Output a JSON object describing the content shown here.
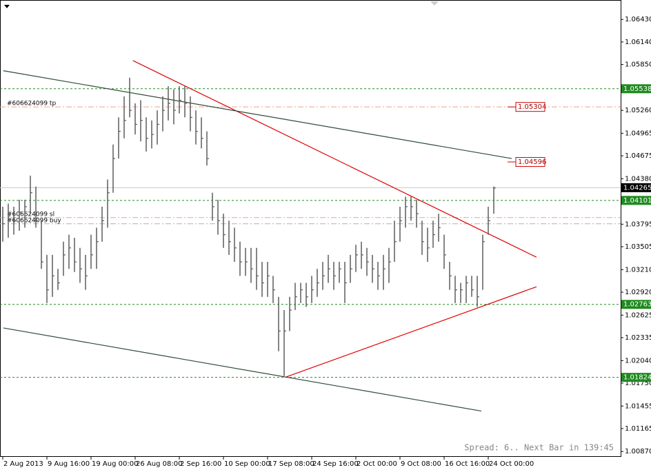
{
  "chart_data": {
    "type": "ohlc",
    "color": "#5a5a5a",
    "ylim": [
      1.0081,
      1.0668
    ],
    "yticks": [
      {
        "value": 1.0643,
        "label": "1.06430"
      },
      {
        "value": 1.0614,
        "label": "1.06140"
      },
      {
        "value": 1.0585,
        "label": "1.05850"
      },
      {
        "value": 1.0526,
        "label": "1.05260"
      },
      1.04965,
      1.04675,
      {
        "value": 1.0438,
        "label": "1.04380"
      },
      1.03795,
      1.03505,
      {
        "value": 1.0321,
        "label": "1.03210"
      },
      {
        "value": 1.0292,
        "label": "1.02920"
      },
      1.02625,
      1.02335,
      {
        "value": 1.0204,
        "label": "1.02040"
      },
      {
        "value": 1.0175,
        "label": "1.01750"
      },
      1.01455,
      1.01165,
      {
        "value": 1.0087,
        "label": "1.00870"
      }
    ],
    "xlim": [
      -0.5,
      112
    ],
    "xticks": [
      {
        "value": 0,
        "label": "2 Aug 2013"
      },
      {
        "value": 8,
        "label": "9 Aug 16:00"
      },
      {
        "value": 16,
        "label": "19 Aug 00:00"
      },
      {
        "value": 24,
        "label": "26 Aug 08:00"
      },
      {
        "value": 32,
        "label": "2 Sep 16:00"
      },
      {
        "value": 40,
        "label": "10 Sep 00:00"
      },
      {
        "value": 48,
        "label": "17 Sep 08:00"
      },
      {
        "value": 56,
        "label": "24 Sep 16:00"
      },
      {
        "value": 64,
        "label": "2 Oct 00:00"
      },
      {
        "value": 72,
        "label": "9 Oct 08:00"
      },
      {
        "value": 80,
        "label": "16 Oct 16:00"
      },
      {
        "value": 88,
        "label": "24 Oct 00:00"
      }
    ],
    "high": [
      1.0402,
      1.0406,
      1.0402,
      1.0411,
      1.0411,
      1.0442,
      1.0428,
      1.0384,
      1.034,
      1.034,
      1.0322,
      1.0357,
      1.0366,
      1.0362,
      1.0349,
      1.034,
      1.0366,
      1.0375,
      1.0402,
      1.0437,
      1.0482,
      1.0517,
      1.0544,
      1.0568,
      1.0535,
      1.0539,
      1.0517,
      1.0513,
      1.0526,
      1.0544,
      1.0557,
      1.0553,
      1.0557,
      1.0557,
      1.0544,
      1.0526,
      1.0517,
      1.0499,
      1.042,
      1.0411,
      1.0393,
      1.0384,
      1.0375,
      1.0357,
      1.0349,
      1.0349,
      1.0349,
      1.0331,
      1.0331,
      1.0313,
      1.0286,
      1.0269,
      1.0286,
      1.0304,
      1.0304,
      1.0304,
      1.0313,
      1.0322,
      1.0331,
      1.034,
      1.0331,
      1.0331,
      1.0331,
      1.034,
      1.0353,
      1.0357,
      1.0349,
      1.034,
      1.0331,
      1.034,
      1.0349,
      1.0384,
      1.0402,
      1.0415,
      1.0415,
      1.0411,
      1.0384,
      1.0375,
      1.0384,
      1.0393,
      1.0366,
      1.0331,
      1.0313,
      1.0304,
      1.0313,
      1.0313,
      1.0313,
      1.0366,
      1.0402,
      1.0428
    ],
    "low": [
      1.0357,
      1.0362,
      1.0366,
      1.0371,
      1.0375,
      1.0393,
      1.0375,
      1.0322,
      1.0278,
      1.0286,
      1.0295,
      1.0313,
      1.0322,
      1.0318,
      1.0304,
      1.0295,
      1.0322,
      1.0322,
      1.0357,
      1.0375,
      1.042,
      1.0464,
      1.049,
      1.0517,
      1.0495,
      1.0486,
      1.0473,
      1.0477,
      1.0482,
      1.0499,
      1.0513,
      1.0508,
      1.0522,
      1.0517,
      1.0499,
      1.0482,
      1.0477,
      1.0455,
      1.0384,
      1.0366,
      1.0349,
      1.034,
      1.0331,
      1.0313,
      1.0313,
      1.0304,
      1.0295,
      1.0286,
      1.0286,
      1.0278,
      1.0216,
      1.0184,
      1.0242,
      1.0269,
      1.0278,
      1.0273,
      1.0278,
      1.0286,
      1.0295,
      1.0304,
      1.0295,
      1.0304,
      1.0278,
      1.0304,
      1.0318,
      1.0322,
      1.0313,
      1.0304,
      1.0295,
      1.0295,
      1.0304,
      1.0331,
      1.0357,
      1.0375,
      1.0384,
      1.0375,
      1.034,
      1.0331,
      1.0349,
      1.0357,
      1.0322,
      1.0295,
      1.0278,
      1.0278,
      1.0278,
      1.0286,
      1.0273,
      1.0295,
      1.0366,
      1.0393
    ],
    "close": [
      1.038,
      1.039,
      1.0384,
      1.0395,
      1.0402,
      1.042,
      1.0384,
      1.0331,
      1.0295,
      1.0313,
      1.0304,
      1.034,
      1.0349,
      1.0331,
      1.0322,
      1.0313,
      1.034,
      1.0357,
      1.0384,
      1.042,
      1.0464,
      1.0499,
      1.0513,
      1.0526,
      1.0508,
      1.0513,
      1.049,
      1.0495,
      1.0508,
      1.0526,
      1.0535,
      1.0526,
      1.0539,
      1.0535,
      1.0517,
      1.0499,
      1.049,
      1.0464,
      1.0402,
      1.0384,
      1.0366,
      1.0357,
      1.0349,
      1.0331,
      1.0331,
      1.0322,
      1.0313,
      1.0304,
      1.0313,
      1.0295,
      1.0242,
      1.0242,
      1.0269,
      1.0286,
      1.0295,
      1.0286,
      1.0295,
      1.0304,
      1.0313,
      1.0322,
      1.0313,
      1.0322,
      1.0304,
      1.0322,
      1.034,
      1.034,
      1.0331,
      1.0322,
      1.0313,
      1.0322,
      1.0331,
      1.0357,
      1.0384,
      1.0402,
      1.0402,
      1.0393,
      1.0357,
      1.0349,
      1.0366,
      1.0375,
      1.034,
      1.0313,
      1.0295,
      1.0295,
      1.0304,
      1.0295,
      1.0286,
      1.0357,
      1.0384,
      1.0426
    ],
    "levels": [
      {
        "value": 1.05538,
        "color": "#1f8a1f"
      },
      {
        "value": 1.04101,
        "color": "#1f8a1f"
      },
      {
        "value": 1.02763,
        "color": "#1f8a1f"
      },
      {
        "value": 1.01824,
        "color": "#1f8a1f"
      }
    ],
    "current_price": 1.04265,
    "orders": [
      {
        "name": "#606624099 tp",
        "price": 1.05304,
        "color": "#f0a090"
      },
      {
        "name": "#606624099 sl",
        "price": 1.0388,
        "color": "#f0a090"
      },
      {
        "name": "#606624099 buy",
        "price": 1.038,
        "color": "#b0b0b0"
      }
    ],
    "price_labels": [
      {
        "value": 1.05304,
        "x": 93
      },
      {
        "value": 1.04596,
        "x": 93
      }
    ],
    "trendlines": [
      {
        "x": [
          23.6,
          96.75
        ],
        "y": [
          1.059,
          1.0337
        ],
        "color": "#e00000"
      },
      {
        "x": [
          51.4,
          96.75
        ],
        "y": [
          1.0183,
          1.0299
        ],
        "color": "#e00000"
      },
      {
        "x": [
          0.1,
          92.25
        ],
        "y": [
          1.0577,
          1.0464
        ],
        "color": "#2d4a3a"
      },
      {
        "x": [
          0.1,
          86.75
        ],
        "y": [
          1.0246,
          1.0139
        ],
        "color": "#2d4a3a"
      }
    ],
    "status": "Spread: 6.. Next Bar in 139:45"
  }
}
